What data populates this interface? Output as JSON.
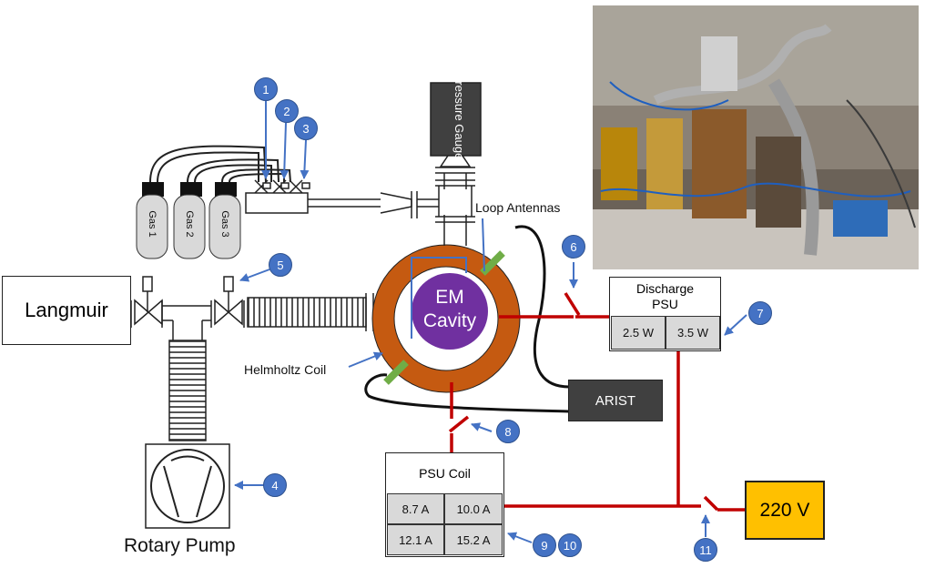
{
  "labels": {
    "langmuir": "Langmuir",
    "rotary_pump": "Rotary Pump",
    "pressure_gauge": "Pressure Gauge",
    "loop_antennas": "Loop Antennas",
    "helmholtz_coil": "Helmholtz Coil",
    "em_cavity_line1": "EM",
    "em_cavity_line2": "Cavity",
    "arist": "ARIST",
    "voltage": "220 V"
  },
  "gases": [
    "Gas 1",
    "Gas 2",
    "Gas 3"
  ],
  "discharge_psu": {
    "title_line1": "Discharge",
    "title_line2": "PSU",
    "settings": [
      "2.5 W",
      "3.5 W"
    ]
  },
  "psu_coil": {
    "title": "PSU Coil",
    "settings": [
      "8.7 A",
      "10.0 A",
      "12.1 A",
      "15.2 A"
    ]
  },
  "markers": [
    "1",
    "2",
    "3",
    "4",
    "5",
    "6",
    "7",
    "8",
    "9",
    "10",
    "11"
  ],
  "colors": {
    "copper_ring": "#c55a11",
    "cavity": "#7030a0",
    "power_line": "#c00000",
    "antenna": "#70ad47",
    "marker": "#4472c4",
    "voltage_box": "#ffc000",
    "arist_box": "#404040"
  }
}
